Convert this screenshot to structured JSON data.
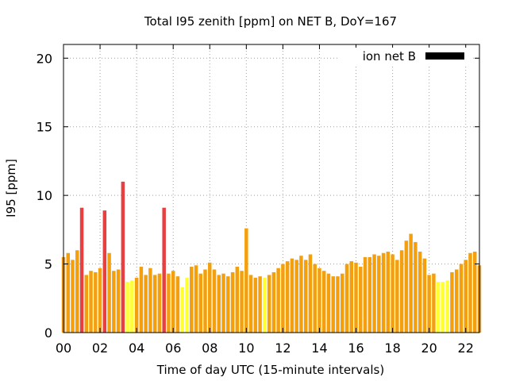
{
  "chart_data": {
    "type": "bar",
    "title": "Total I95 zenith [ppm] on NET B, DoY=167",
    "xlabel": "Time of day UTC (15-minute intervals)",
    "ylabel": "I95 [ppm]",
    "xlim": [
      0,
      22.75
    ],
    "ylim": [
      0,
      21
    ],
    "x_ticks": [
      "00",
      "02",
      "04",
      "06",
      "08",
      "10",
      "12",
      "14",
      "16",
      "18",
      "20",
      "22"
    ],
    "x_tick_values": [
      0,
      2,
      4,
      6,
      8,
      10,
      12,
      14,
      16,
      18,
      20,
      22
    ],
    "y_ticks": [
      "0",
      "5",
      "10",
      "15",
      "20"
    ],
    "y_tick_values": [
      0,
      5,
      10,
      15,
      20
    ],
    "grid": true,
    "legend": {
      "label": "ion net B",
      "color": "#000000",
      "placement": "top-right"
    },
    "bar_interval_hours": 0.25,
    "colors": {
      "red": "#e84040",
      "orange": "#f4a00e",
      "yellow": "#ffff33"
    },
    "values": [
      5.5,
      5.8,
      5.3,
      6.0,
      9.1,
      4.2,
      4.5,
      4.4,
      4.7,
      8.9,
      5.8,
      4.5,
      4.6,
      11.0,
      3.7,
      3.8,
      4.0,
      4.8,
      4.2,
      4.7,
      4.2,
      4.3,
      9.1,
      4.3,
      4.5,
      4.1,
      3.3,
      4.0,
      4.8,
      4.9,
      4.3,
      4.6,
      5.1,
      4.6,
      4.2,
      4.3,
      4.1,
      4.4,
      4.8,
      4.5,
      7.6,
      4.2,
      4.0,
      4.1,
      4.0,
      4.2,
      4.4,
      4.7,
      5.0,
      5.2,
      5.4,
      5.3,
      5.6,
      5.3,
      5.7,
      5.0,
      4.7,
      4.5,
      4.3,
      4.1,
      4.1,
      4.3,
      5.0,
      5.2,
      5.1,
      4.8,
      5.5,
      5.5,
      5.7,
      5.6,
      5.8,
      5.9,
      5.7,
      5.3,
      6.0,
      6.7,
      7.2,
      6.6,
      5.9,
      5.4,
      4.2,
      4.3,
      3.7,
      3.7,
      3.8,
      4.4,
      4.6,
      5.0,
      5.3,
      5.8,
      5.9,
      4.9
    ],
    "value_colors": [
      "orange",
      "orange",
      "orange",
      "orange",
      "red",
      "orange",
      "orange",
      "orange",
      "orange",
      "red",
      "orange",
      "orange",
      "orange",
      "red",
      "yellow",
      "yellow",
      "orange",
      "orange",
      "orange",
      "orange",
      "orange",
      "orange",
      "red",
      "orange",
      "orange",
      "orange",
      "yellow",
      "yellow",
      "orange",
      "orange",
      "orange",
      "orange",
      "orange",
      "orange",
      "orange",
      "orange",
      "orange",
      "orange",
      "orange",
      "orange",
      "orange",
      "orange",
      "orange",
      "orange",
      "yellow",
      "orange",
      "orange",
      "orange",
      "orange",
      "orange",
      "orange",
      "orange",
      "orange",
      "orange",
      "orange",
      "orange",
      "orange",
      "orange",
      "orange",
      "orange",
      "orange",
      "orange",
      "orange",
      "orange",
      "orange",
      "orange",
      "orange",
      "orange",
      "orange",
      "orange",
      "orange",
      "orange",
      "orange",
      "orange",
      "orange",
      "orange",
      "orange",
      "orange",
      "orange",
      "orange",
      "orange",
      "orange",
      "yellow",
      "yellow",
      "yellow",
      "orange",
      "orange",
      "orange",
      "orange",
      "orange",
      "orange",
      "orange"
    ]
  }
}
